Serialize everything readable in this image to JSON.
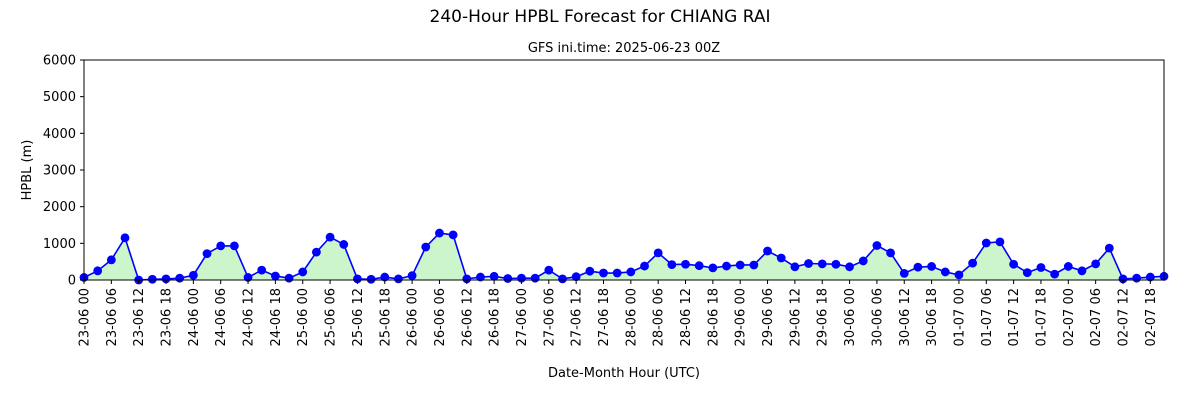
{
  "chart_data": {
    "type": "line",
    "title": "240-Hour HPBL Forecast for CHIANG RAI",
    "subtitle": "GFS ini.time: 2025-06-23 00Z",
    "xlabel": "Date-Month Hour (UTC)",
    "ylabel": "HPBL (m)",
    "ylim": [
      0,
      6000
    ],
    "yticks": [
      0,
      1000,
      2000,
      3000,
      4000,
      5000,
      6000
    ],
    "grid": false,
    "line_color": "#0000ff",
    "fill_color": "#ccf5cc",
    "x_tick_labels": [
      "23-06 00",
      "23-06 06",
      "23-06 12",
      "23-06 18",
      "24-06 00",
      "24-06 06",
      "24-06 12",
      "24-06 18",
      "25-06 00",
      "25-06 06",
      "25-06 12",
      "25-06 18",
      "26-06 00",
      "26-06 06",
      "26-06 12",
      "26-06 18",
      "27-06 00",
      "27-06 06",
      "27-06 12",
      "27-06 18",
      "28-06 00",
      "28-06 06",
      "28-06 12",
      "28-06 18",
      "29-06 00",
      "29-06 06",
      "29-06 12",
      "29-06 18",
      "30-06 00",
      "30-06 06",
      "30-06 12",
      "30-06 18",
      "01-07 00",
      "01-07 06",
      "01-07 12",
      "01-07 18",
      "02-07 00",
      "02-07 06",
      "02-07 12",
      "02-07 18"
    ],
    "series": [
      {
        "values": [
          70,
          250,
          550,
          1150,
          0,
          20,
          30,
          50,
          130,
          720,
          930,
          930,
          70,
          270,
          110,
          50,
          220,
          760,
          1170,
          970,
          30,
          20,
          80,
          30,
          120,
          900,
          1280,
          1230,
          30,
          80,
          100,
          40,
          50,
          50,
          270,
          30,
          90,
          240,
          190,
          190,
          220,
          380,
          740,
          420,
          430,
          390,
          330,
          380,
          410,
          410,
          790,
          600,
          360,
          450,
          440,
          430,
          360,
          520,
          940,
          740,
          180,
          350,
          370,
          220,
          140,
          460,
          1010,
          1040,
          430,
          200,
          340,
          160,
          370,
          250,
          440,
          870,
          30,
          50,
          80,
          100
        ]
      }
    ]
  }
}
